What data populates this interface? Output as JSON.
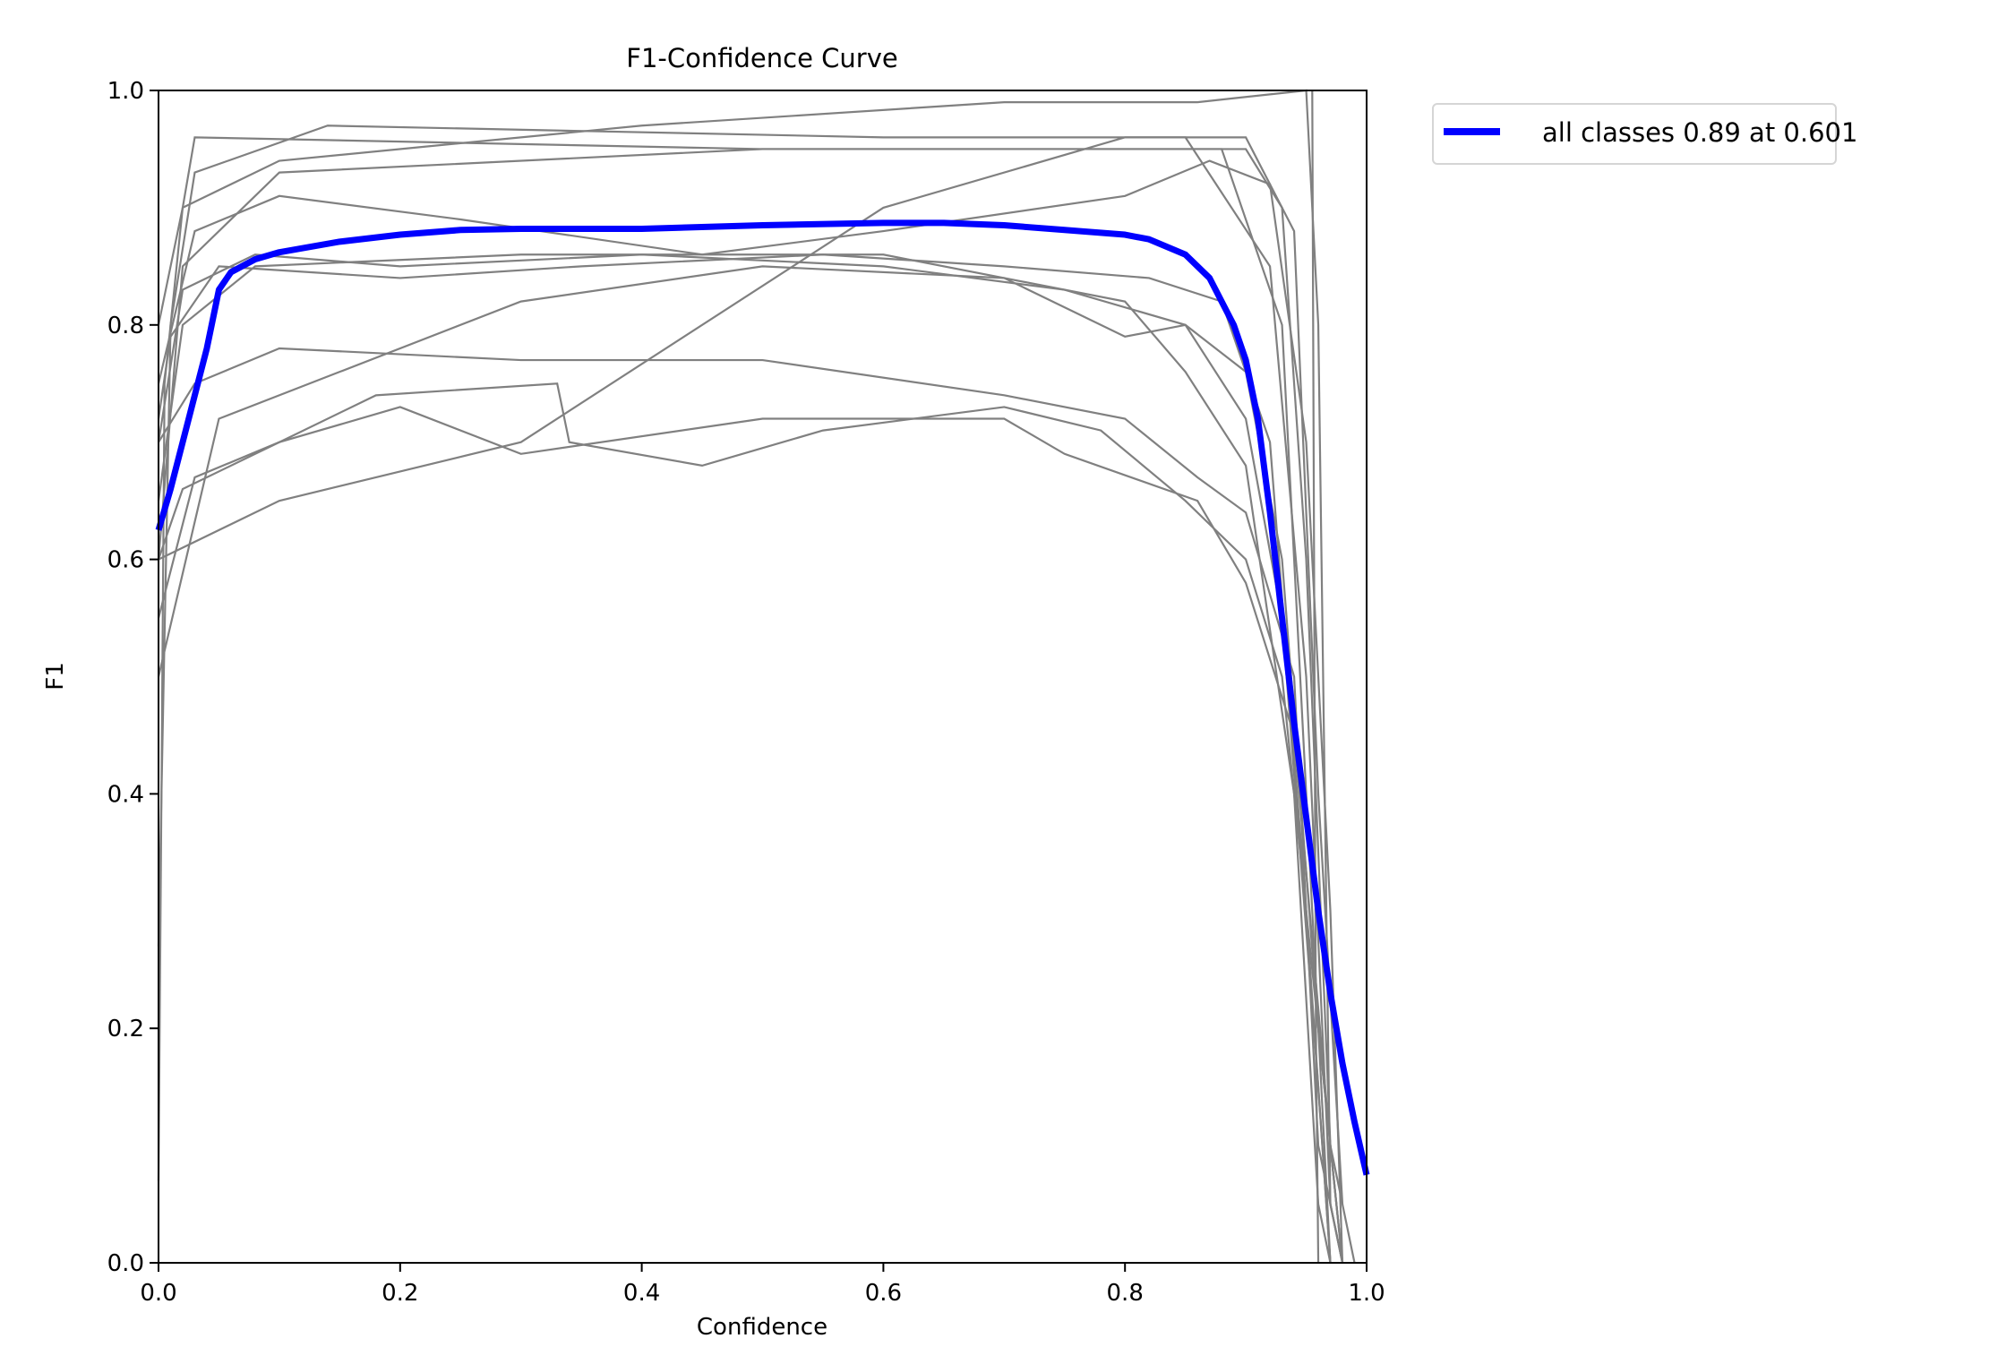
{
  "chart_data": {
    "type": "line",
    "title": "F1-Confidence Curve",
    "xlabel": "Confidence",
    "ylabel": "F1",
    "xlim": [
      0,
      1
    ],
    "ylim": [
      0,
      1
    ],
    "xticks": [
      "0.0",
      "0.2",
      "0.4",
      "0.6",
      "0.8",
      "1.0"
    ],
    "yticks": [
      "0.0",
      "0.2",
      "0.4",
      "0.6",
      "0.8",
      "1.0"
    ],
    "grid": false,
    "legend": {
      "placement": "outside-top-right",
      "entries": [
        "all classes 0.89 at 0.601"
      ]
    },
    "colors": {
      "class_curves": "#808080",
      "all_classes": "#0000ff"
    },
    "class_series": [
      [
        [
          0,
          0.07
        ],
        [
          0.005,
          0.75
        ],
        [
          0.02,
          0.9
        ],
        [
          0.03,
          0.96
        ],
        [
          0.5,
          0.95
        ],
        [
          0.9,
          0.95
        ],
        [
          0.93,
          0.9
        ],
        [
          0.95,
          0.6
        ],
        [
          0.97,
          0.1
        ],
        [
          0.98,
          0
        ]
      ],
      [
        [
          0,
          0.27
        ],
        [
          0.01,
          0.8
        ],
        [
          0.03,
          0.93
        ],
        [
          0.14,
          0.97
        ],
        [
          0.6,
          0.96
        ],
        [
          0.85,
          0.96
        ],
        [
          0.92,
          0.85
        ],
        [
          0.95,
          0.5
        ],
        [
          0.97,
          0.05
        ],
        [
          0.98,
          0
        ]
      ],
      [
        [
          0,
          0.6
        ],
        [
          0.02,
          0.85
        ],
        [
          0.1,
          0.93
        ],
        [
          0.5,
          0.95
        ],
        [
          0.88,
          0.95
        ],
        [
          0.93,
          0.8
        ],
        [
          0.96,
          0.2
        ],
        [
          0.97,
          0
        ]
      ],
      [
        [
          0,
          0.65
        ],
        [
          0.02,
          0.8
        ],
        [
          0.08,
          0.85
        ],
        [
          0.3,
          0.86
        ],
        [
          0.6,
          0.86
        ],
        [
          0.8,
          0.82
        ],
        [
          0.85,
          0.76
        ],
        [
          0.9,
          0.68
        ],
        [
          0.94,
          0.4
        ],
        [
          0.96,
          0.05
        ],
        [
          0.97,
          0
        ]
      ],
      [
        [
          0,
          0.7
        ],
        [
          0.03,
          0.75
        ],
        [
          0.1,
          0.78
        ],
        [
          0.3,
          0.77
        ],
        [
          0.5,
          0.77
        ],
        [
          0.7,
          0.74
        ],
        [
          0.8,
          0.72
        ],
        [
          0.86,
          0.67
        ],
        [
          0.9,
          0.64
        ],
        [
          0.94,
          0.5
        ],
        [
          0.96,
          0.1
        ],
        [
          0.98,
          0
        ]
      ],
      [
        [
          0,
          0.6
        ],
        [
          0.02,
          0.66
        ],
        [
          0.1,
          0.7
        ],
        [
          0.18,
          0.74
        ],
        [
          0.33,
          0.75
        ],
        [
          0.34,
          0.7
        ],
        [
          0.45,
          0.68
        ],
        [
          0.55,
          0.71
        ],
        [
          0.7,
          0.73
        ],
        [
          0.78,
          0.71
        ],
        [
          0.85,
          0.65
        ],
        [
          0.9,
          0.6
        ],
        [
          0.93,
          0.5
        ],
        [
          0.96,
          0.2
        ],
        [
          0.98,
          0
        ]
      ],
      [
        [
          0,
          0.55
        ],
        [
          0.03,
          0.67
        ],
        [
          0.1,
          0.7
        ],
        [
          0.2,
          0.73
        ],
        [
          0.3,
          0.69
        ],
        [
          0.5,
          0.72
        ],
        [
          0.7,
          0.72
        ],
        [
          0.75,
          0.69
        ],
        [
          0.86,
          0.65
        ],
        [
          0.9,
          0.58
        ],
        [
          0.94,
          0.45
        ],
        [
          0.97,
          0.1
        ],
        [
          0.99,
          0
        ]
      ],
      [
        [
          0,
          0.7
        ],
        [
          0.02,
          0.83
        ],
        [
          0.08,
          0.86
        ],
        [
          0.2,
          0.85
        ],
        [
          0.4,
          0.86
        ],
        [
          0.6,
          0.85
        ],
        [
          0.75,
          0.83
        ],
        [
          0.85,
          0.8
        ],
        [
          0.9,
          0.76
        ],
        [
          0.93,
          0.6
        ],
        [
          0.96,
          0.2
        ],
        [
          0.98,
          0
        ]
      ],
      [
        [
          0,
          0.75
        ],
        [
          0.03,
          0.88
        ],
        [
          0.1,
          0.91
        ],
        [
          0.25,
          0.89
        ],
        [
          0.45,
          0.86
        ],
        [
          0.6,
          0.88
        ],
        [
          0.8,
          0.91
        ],
        [
          0.87,
          0.94
        ],
        [
          0.92,
          0.92
        ],
        [
          0.95,
          0.7
        ],
        [
          0.97,
          0.3
        ],
        [
          0.98,
          0
        ]
      ],
      [
        [
          0,
          0.8
        ],
        [
          0.02,
          0.9
        ],
        [
          0.1,
          0.94
        ],
        [
          0.4,
          0.97
        ],
        [
          0.7,
          0.99
        ],
        [
          0.86,
          0.99
        ],
        [
          0.95,
          1.0
        ],
        [
          0.96,
          0.8
        ],
        [
          0.97,
          0.05
        ],
        [
          0.98,
          0
        ]
      ],
      [
        [
          0,
          0.72
        ],
        [
          0.01,
          0.79
        ],
        [
          0.05,
          0.85
        ],
        [
          0.2,
          0.84
        ],
        [
          0.35,
          0.85
        ],
        [
          0.55,
          0.86
        ],
        [
          0.7,
          0.85
        ],
        [
          0.82,
          0.84
        ],
        [
          0.88,
          0.82
        ],
        [
          0.92,
          0.7
        ],
        [
          0.95,
          0.3
        ],
        [
          0.97,
          0
        ]
      ],
      [
        [
          0,
          0.5
        ],
        [
          0.05,
          0.72
        ],
        [
          0.15,
          0.76
        ],
        [
          0.3,
          0.82
        ],
        [
          0.5,
          0.85
        ],
        [
          0.7,
          0.84
        ],
        [
          0.8,
          0.79
        ],
        [
          0.85,
          0.8
        ],
        [
          0.9,
          0.72
        ],
        [
          0.93,
          0.55
        ],
        [
          0.96,
          0.15
        ],
        [
          0.97,
          0
        ]
      ],
      [
        [
          0,
          0.6
        ],
        [
          0.1,
          0.65
        ],
        [
          0.3,
          0.7
        ],
        [
          0.6,
          0.9
        ],
        [
          0.8,
          0.96
        ],
        [
          0.9,
          0.96
        ],
        [
          0.94,
          0.88
        ],
        [
          0.96,
          0.4
        ],
        [
          0.98,
          0.05
        ]
      ],
      [
        [
          0.955,
          1.0
        ],
        [
          0.958,
          0.2
        ],
        [
          0.96,
          0
        ]
      ]
    ],
    "series": [
      {
        "name": "all classes 0.89 at 0.601",
        "x": [
          0,
          0.01,
          0.02,
          0.03,
          0.04,
          0.05,
          0.06,
          0.08,
          0.1,
          0.15,
          0.2,
          0.25,
          0.3,
          0.4,
          0.5,
          0.6,
          0.65,
          0.7,
          0.75,
          0.8,
          0.82,
          0.85,
          0.87,
          0.89,
          0.9,
          0.91,
          0.92,
          0.93,
          0.94,
          0.95,
          0.96,
          0.97,
          0.98,
          0.99,
          1.0
        ],
        "y": [
          0.625,
          0.66,
          0.7,
          0.74,
          0.78,
          0.83,
          0.845,
          0.856,
          0.862,
          0.871,
          0.877,
          0.881,
          0.882,
          0.882,
          0.885,
          0.887,
          0.887,
          0.885,
          0.881,
          0.877,
          0.873,
          0.86,
          0.84,
          0.8,
          0.77,
          0.72,
          0.64,
          0.55,
          0.46,
          0.38,
          0.3,
          0.23,
          0.17,
          0.12,
          0.075
        ]
      }
    ]
  }
}
